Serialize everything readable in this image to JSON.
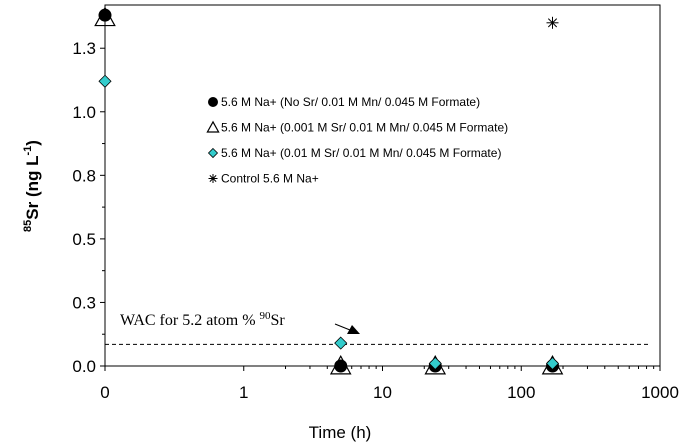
{
  "chart_data": {
    "type": "scatter",
    "title": "",
    "xlabel": "Time (h)",
    "ylabel": {
      "sup1": "85",
      "main": "Sr (ng L",
      "sup2": "-1",
      "close": ")"
    },
    "x_scale": "log-like with zero",
    "xticks": [
      "0",
      "1",
      "10",
      "100",
      "1000"
    ],
    "yticks": [
      "0.0",
      "0.3",
      "0.5",
      "0.8",
      "1.0",
      "1.3"
    ],
    "xlim": [
      0,
      1000
    ],
    "ylim": [
      0,
      1.42
    ],
    "grid": false,
    "legend_position": "center",
    "series": [
      {
        "name": "5.6 M Na+ (No Sr/ 0.01 M Mn/ 0.045 M Formate)",
        "marker": "filled-circle",
        "color": "#000000",
        "points": [
          {
            "x": 0,
            "y": 1.38
          },
          {
            "x": 5,
            "y": 0.0
          },
          {
            "x": 24,
            "y": 0.0
          },
          {
            "x": 168,
            "y": 0.0
          }
        ]
      },
      {
        "name": "5.6 M Na+ (0.001 M Sr/ 0.01 M Mn/ 0.045 M Formate)",
        "marker": "open-triangle",
        "color": "#000000",
        "points": [
          {
            "x": 0,
            "y": 1.37
          },
          {
            "x": 5,
            "y": 0.0
          },
          {
            "x": 24,
            "y": 0.0
          },
          {
            "x": 168,
            "y": 0.0
          }
        ]
      },
      {
        "name": "5.6 M Na+ (0.01 M Sr/ 0.01 M Mn/ 0.045 M Formate)",
        "marker": "diamond",
        "color": "#33cccc",
        "points": [
          {
            "x": 0,
            "y": 1.12
          },
          {
            "x": 5,
            "y": 0.09
          },
          {
            "x": 24,
            "y": 0.01
          },
          {
            "x": 168,
            "y": 0.01
          }
        ]
      },
      {
        "name": "Control 5.6 M Na+",
        "marker": "asterisk",
        "color": "#000000",
        "points": [
          {
            "x": 168,
            "y": 1.35
          }
        ]
      }
    ],
    "reference_line": {
      "y": 0.085,
      "label": "WAC for 5.2 atom % ",
      "label_sup": "90",
      "label_end": "Sr",
      "style": "dashed"
    }
  }
}
